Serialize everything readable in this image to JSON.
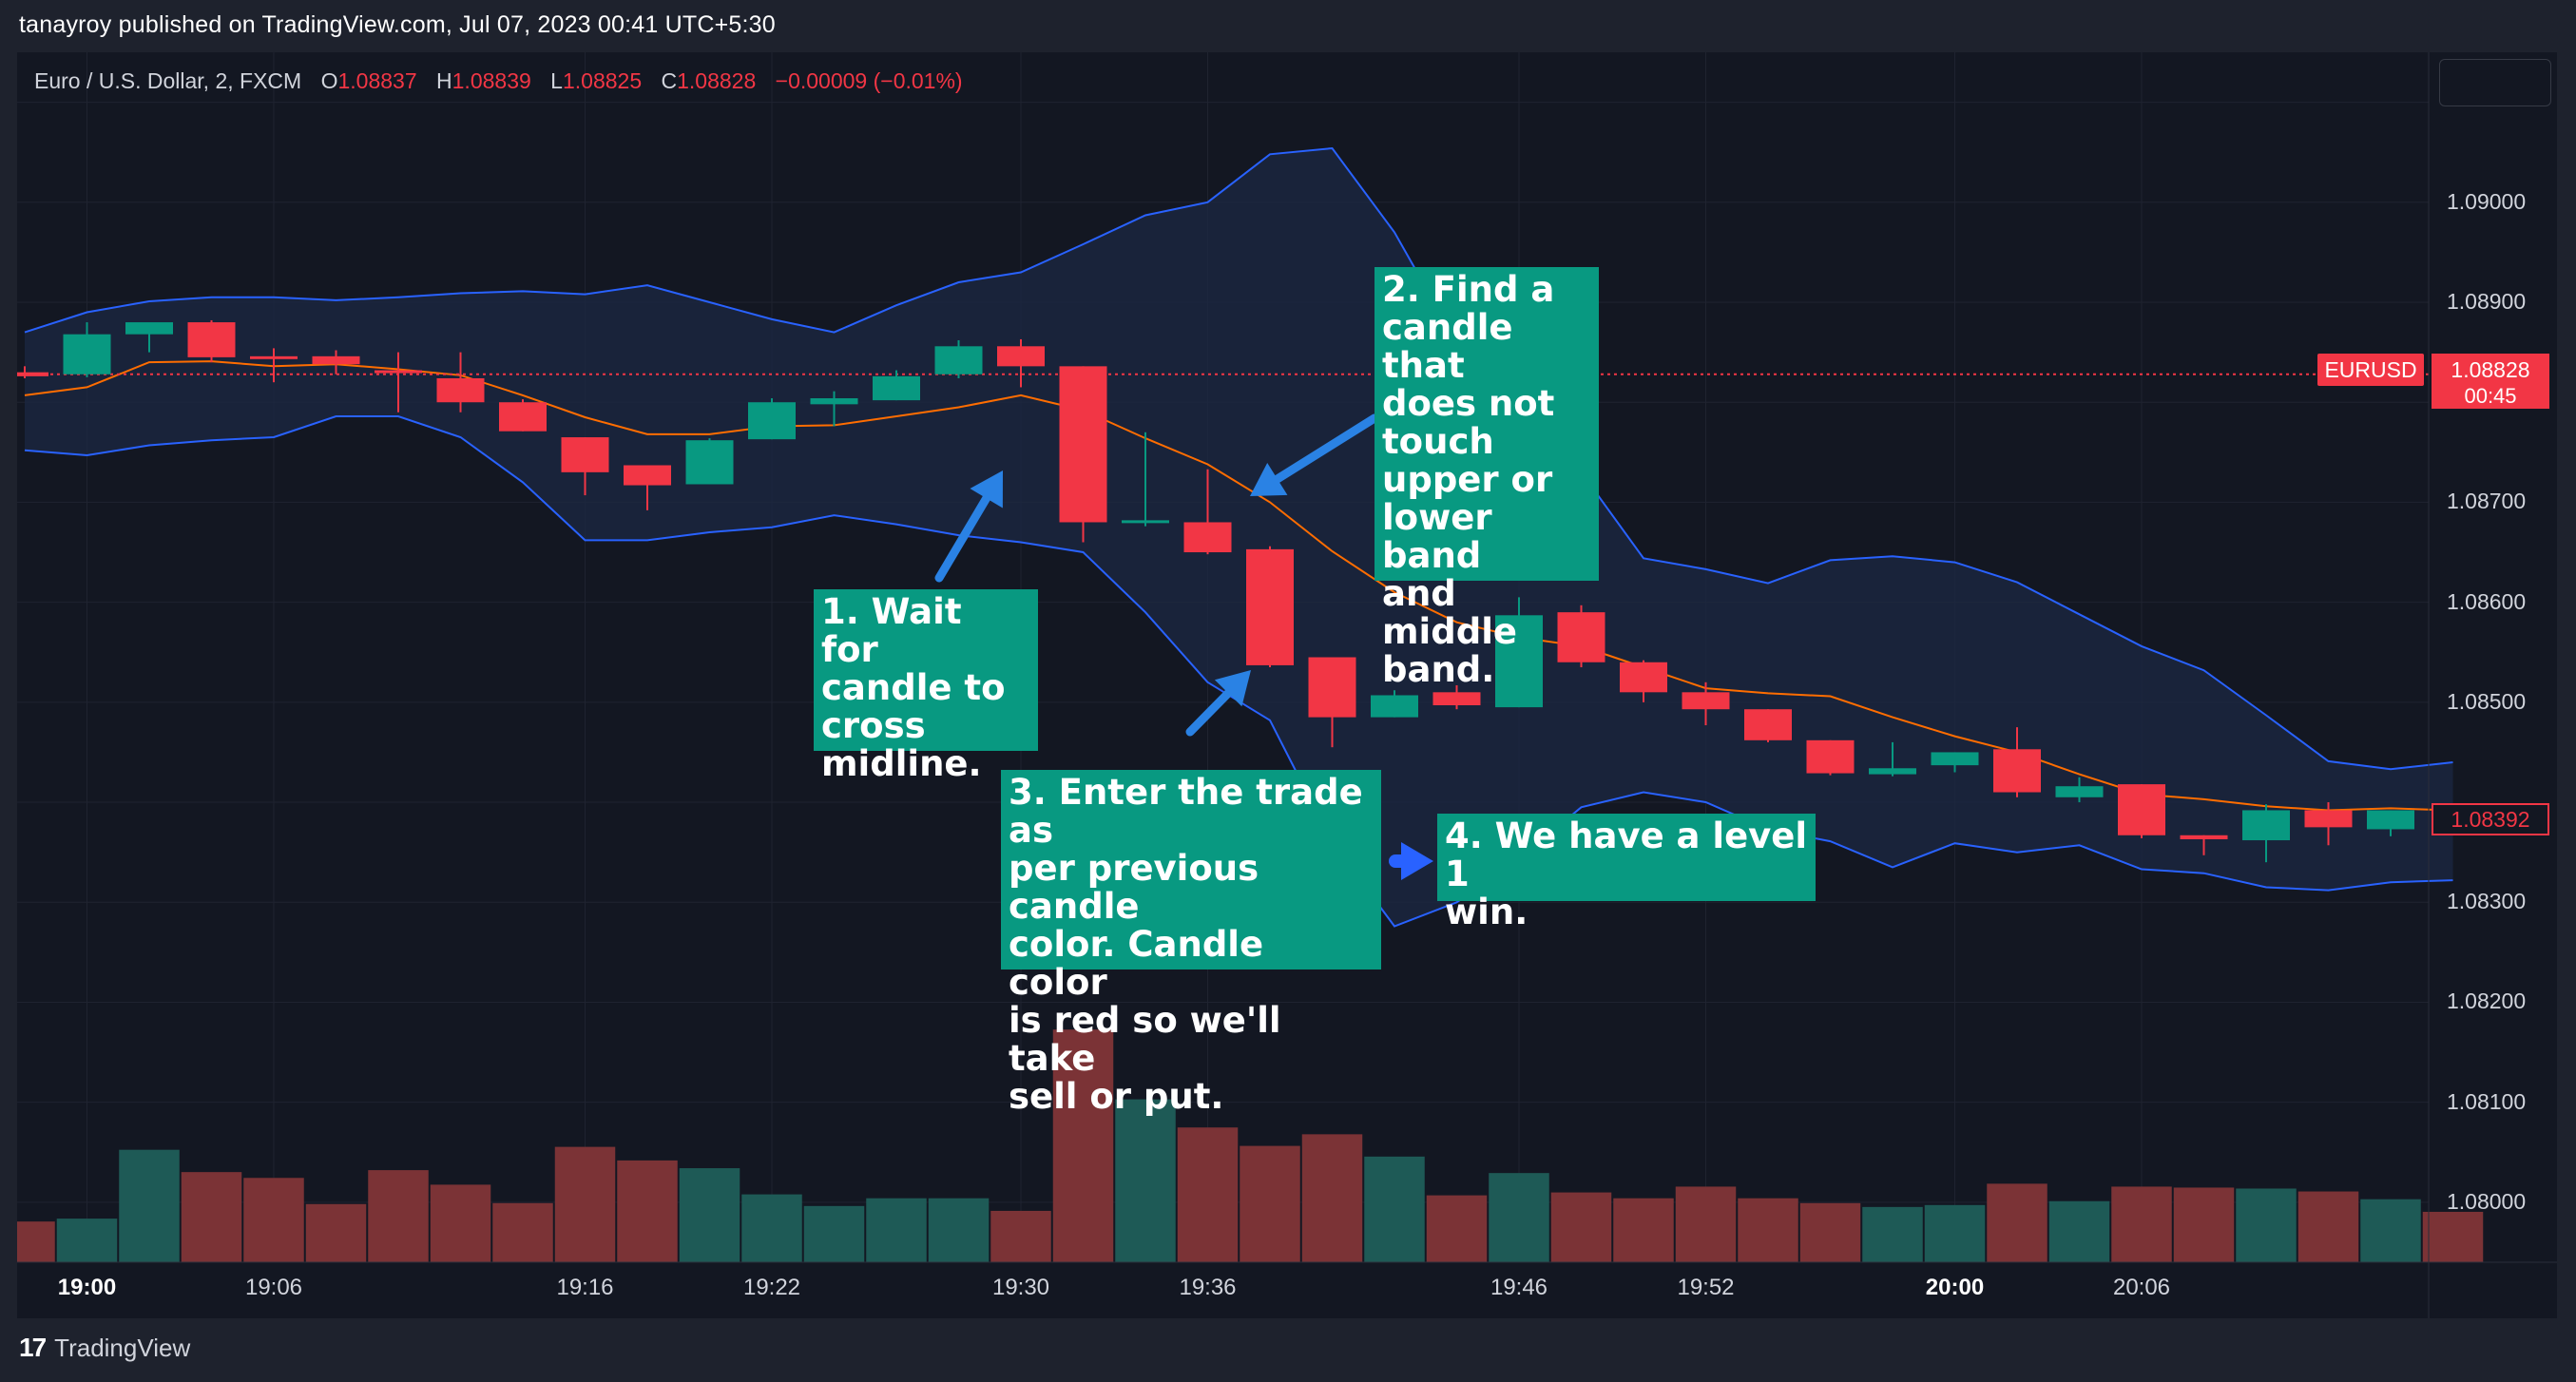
{
  "header": {
    "published_line": "tanayroy published on TradingView.com, Jul 07, 2023 00:41 UTC+5:30"
  },
  "legend": {
    "symbol": "Euro / U.S. Dollar, 2, FXCM",
    "open_label": "O",
    "open": "1.08837",
    "high_label": "H",
    "high": "1.08839",
    "low_label": "L",
    "low": "1.08825",
    "close_label": "C",
    "close": "1.08828",
    "change": "−0.00009 (−0.01%)"
  },
  "price_tags": {
    "symbol": "EURUSD",
    "last_price": "1.08828",
    "countdown": "00:45",
    "bb_middle": "1.08392"
  },
  "annotations": {
    "step1": "1. Wait for\ncandle to\ncross\nmidline.",
    "step2": "2. Find a\ncandle that\ndoes not\ntouch\nupper or\nlower band\nand middle\nband.",
    "step3": "3. Enter the trade as\nper previous candle\ncolor. Candle color\nis red so we'll take\nsell or put.",
    "step4": "4. We have a level 1\nwin."
  },
  "brand": {
    "logo": "17",
    "name": "TradingView"
  },
  "colors": {
    "up": "#089981",
    "down": "#f23645",
    "vol_up": "#1e5a56",
    "vol_down": "#7b3336",
    "band": "#2962ff",
    "basis": "#ff6d00",
    "band_fill": "#1c2741",
    "annotation_bg": "#089981",
    "arrow": "#2a82e4"
  },
  "chart_data": {
    "type": "candlestick",
    "symbol": "EURUSD",
    "timeframe_minutes": 2,
    "ylim": [
      1.0794,
      1.0915
    ],
    "y_ticks": [
      "1.09000",
      "1.08900",
      "1.08700",
      "1.08600",
      "1.08500",
      "1.08300",
      "1.08200",
      "1.08100",
      "1.08000"
    ],
    "x_ticks": [
      {
        "bar": 1,
        "label": "19:00",
        "bold": true
      },
      {
        "bar": 4,
        "label": "19:06",
        "bold": false
      },
      {
        "bar": 9,
        "label": "19:16",
        "bold": false
      },
      {
        "bar": 12,
        "label": "19:22",
        "bold": false
      },
      {
        "bar": 16,
        "label": "19:30",
        "bold": false
      },
      {
        "bar": 19,
        "label": "19:36",
        "bold": false
      },
      {
        "bar": 24,
        "label": "19:46",
        "bold": false
      },
      {
        "bar": 27,
        "label": "19:52",
        "bold": false
      },
      {
        "bar": 31,
        "label": "20:00",
        "bold": true
      },
      {
        "bar": 34,
        "label": "20:06",
        "bold": false
      }
    ],
    "candles": [
      {
        "o": 1.0883,
        "h": 1.08836,
        "l": 1.08824,
        "c": 1.08826
      },
      {
        "o": 1.08828,
        "h": 1.0888,
        "l": 1.08825,
        "c": 1.08868
      },
      {
        "o": 1.08868,
        "h": 1.08874,
        "l": 1.0885,
        "c": 1.0888
      },
      {
        "o": 1.0888,
        "h": 1.08882,
        "l": 1.0884,
        "c": 1.08845
      },
      {
        "o": 1.08846,
        "h": 1.08854,
        "l": 1.0882,
        "c": 1.08845
      },
      {
        "o": 1.08846,
        "h": 1.08852,
        "l": 1.08828,
        "c": 1.08838
      },
      {
        "o": 1.08832,
        "h": 1.0885,
        "l": 1.0879,
        "c": 1.0883
      },
      {
        "o": 1.08824,
        "h": 1.0885,
        "l": 1.0879,
        "c": 1.088
      },
      {
        "o": 1.088,
        "h": 1.08803,
        "l": 1.08771,
        "c": 1.08771
      },
      {
        "o": 1.08765,
        "h": 1.08765,
        "l": 1.08707,
        "c": 1.0873
      },
      {
        "o": 1.08737,
        "h": 1.08737,
        "l": 1.08692,
        "c": 1.08717
      },
      {
        "o": 1.08718,
        "h": 1.08764,
        "l": 1.08718,
        "c": 1.08762
      },
      {
        "o": 1.08763,
        "h": 1.08804,
        "l": 1.08763,
        "c": 1.088
      },
      {
        "o": 1.08798,
        "h": 1.08811,
        "l": 1.08776,
        "c": 1.08804
      },
      {
        "o": 1.08802,
        "h": 1.08832,
        "l": 1.08802,
        "c": 1.08826
      },
      {
        "o": 1.08828,
        "h": 1.08862,
        "l": 1.08824,
        "c": 1.08856
      },
      {
        "o": 1.08856,
        "h": 1.08863,
        "l": 1.08815,
        "c": 1.08836
      },
      {
        "o": 1.08836,
        "h": 1.08836,
        "l": 1.0866,
        "c": 1.0868
      },
      {
        "o": 1.0868,
        "h": 1.0877,
        "l": 1.08676,
        "c": 1.08682
      },
      {
        "o": 1.0868,
        "h": 1.08733,
        "l": 1.08648,
        "c": 1.0865
      },
      {
        "o": 1.08653,
        "h": 1.08656,
        "l": 1.08535,
        "c": 1.08537
      },
      {
        "o": 1.08545,
        "h": 1.08545,
        "l": 1.08455,
        "c": 1.08485
      },
      {
        "o": 1.08485,
        "h": 1.08512,
        "l": 1.08485,
        "c": 1.08507
      },
      {
        "o": 1.0851,
        "h": 1.08517,
        "l": 1.08493,
        "c": 1.08497
      },
      {
        "o": 1.08495,
        "h": 1.08605,
        "l": 1.08495,
        "c": 1.08587
      },
      {
        "o": 1.0859,
        "h": 1.08597,
        "l": 1.08535,
        "c": 1.0854
      },
      {
        "o": 1.0854,
        "h": 1.08542,
        "l": 1.085,
        "c": 1.0851
      },
      {
        "o": 1.0851,
        "h": 1.0852,
        "l": 1.08477,
        "c": 1.08493
      },
      {
        "o": 1.08493,
        "h": 1.08493,
        "l": 1.0846,
        "c": 1.08462
      },
      {
        "o": 1.08462,
        "h": 1.08462,
        "l": 1.08427,
        "c": 1.08429
      },
      {
        "o": 1.08428,
        "h": 1.0846,
        "l": 1.08426,
        "c": 1.08434
      },
      {
        "o": 1.08437,
        "h": 1.0845,
        "l": 1.0843,
        "c": 1.0845
      },
      {
        "o": 1.08453,
        "h": 1.08475,
        "l": 1.08405,
        "c": 1.0841
      },
      {
        "o": 1.08405,
        "h": 1.08425,
        "l": 1.084,
        "c": 1.08416
      },
      {
        "o": 1.08418,
        "h": 1.08418,
        "l": 1.08364,
        "c": 1.08367
      },
      {
        "o": 1.08367,
        "h": 1.08367,
        "l": 1.08347,
        "c": 1.08363
      },
      {
        "o": 1.08362,
        "h": 1.08398,
        "l": 1.0834,
        "c": 1.08392
      },
      {
        "o": 1.08392,
        "h": 1.084,
        "l": 1.08357,
        "c": 1.08375
      },
      {
        "o": 1.08373,
        "h": 1.08392,
        "l": 1.08366,
        "c": 1.08392
      }
    ],
    "volume": [
      {
        "v": 0.42,
        "up": false
      },
      {
        "v": 0.45,
        "up": true
      },
      {
        "v": 1.16,
        "up": true
      },
      {
        "v": 0.93,
        "up": false
      },
      {
        "v": 0.87,
        "up": false
      },
      {
        "v": 0.6,
        "up": false
      },
      {
        "v": 0.95,
        "up": false
      },
      {
        "v": 0.8,
        "up": false
      },
      {
        "v": 0.61,
        "up": false
      },
      {
        "v": 1.19,
        "up": false
      },
      {
        "v": 1.05,
        "up": false
      },
      {
        "v": 0.97,
        "up": true
      },
      {
        "v": 0.7,
        "up": true
      },
      {
        "v": 0.58,
        "up": true
      },
      {
        "v": 0.66,
        "up": true
      },
      {
        "v": 0.66,
        "up": true
      },
      {
        "v": 0.53,
        "up": false
      },
      {
        "v": 2.4,
        "up": false
      },
      {
        "v": 1.68,
        "up": true
      },
      {
        "v": 1.39,
        "up": false
      },
      {
        "v": 1.2,
        "up": false
      },
      {
        "v": 1.32,
        "up": false
      },
      {
        "v": 1.09,
        "up": true
      },
      {
        "v": 0.69,
        "up": false
      },
      {
        "v": 0.92,
        "up": true
      },
      {
        "v": 0.72,
        "up": false
      },
      {
        "v": 0.66,
        "up": false
      },
      {
        "v": 0.78,
        "up": false
      },
      {
        "v": 0.66,
        "up": false
      },
      {
        "v": 0.61,
        "up": false
      },
      {
        "v": 0.57,
        "up": true
      },
      {
        "v": 0.59,
        "up": true
      },
      {
        "v": 0.81,
        "up": false
      },
      {
        "v": 0.63,
        "up": true
      },
      {
        "v": 0.78,
        "up": false
      },
      {
        "v": 0.77,
        "up": false
      },
      {
        "v": 0.76,
        "up": true
      },
      {
        "v": 0.73,
        "up": false
      },
      {
        "v": 0.65,
        "up": true
      },
      {
        "v": 0.52,
        "up": false
      }
    ],
    "bollinger": {
      "upper": [
        1.0887,
        1.0889,
        1.08901,
        1.08905,
        1.08905,
        1.08902,
        1.08905,
        1.08909,
        1.08911,
        1.08908,
        1.08917,
        1.089,
        1.08883,
        1.0887,
        1.08897,
        1.0892,
        1.0893,
        1.08958,
        1.08987,
        1.09,
        1.09048,
        1.09054,
        1.0897,
        1.0886,
        1.08785,
        1.0873,
        1.08644,
        1.08633,
        1.08619,
        1.08642,
        1.08646,
        1.0864,
        1.0862,
        1.08588,
        1.08556,
        1.08532,
        1.08487,
        1.08441,
        1.08433,
        1.0844
      ],
      "basis": [
        1.08807,
        1.08815,
        1.0884,
        1.08841,
        1.08836,
        1.08838,
        1.08833,
        1.08827,
        1.08807,
        1.08785,
        1.08768,
        1.08768,
        1.08776,
        1.08777,
        1.08786,
        1.08795,
        1.08807,
        1.08792,
        1.08764,
        1.08738,
        1.087,
        1.08651,
        1.0861,
        1.0858,
        1.08565,
        1.08556,
        1.08535,
        1.08514,
        1.08509,
        1.08506,
        1.08485,
        1.08466,
        1.0845,
        1.08428,
        1.08408,
        1.08403,
        1.08396,
        1.08392,
        1.08394,
        1.08392
      ],
      "lower": [
        1.08752,
        1.08747,
        1.08757,
        1.08762,
        1.08765,
        1.08786,
        1.08786,
        1.08765,
        1.0872,
        1.08662,
        1.08662,
        1.0867,
        1.08675,
        1.08687,
        1.08678,
        1.08667,
        1.0866,
        1.0865,
        1.0859,
        1.0852,
        1.08482,
        1.0836,
        1.08276,
        1.083,
        1.08343,
        1.08395,
        1.0841,
        1.084,
        1.08373,
        1.08361,
        1.08335,
        1.08359,
        1.0835,
        1.08357,
        1.08333,
        1.08329,
        1.08315,
        1.08312,
        1.0832,
        1.08322
      ]
    }
  }
}
